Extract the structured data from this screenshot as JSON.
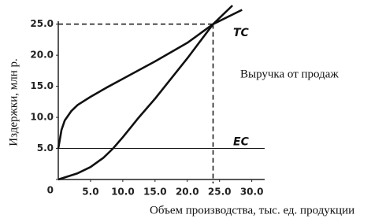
{
  "chart_data": {
    "type": "line",
    "x_label": "Объем производства, тыс. ед. продукции",
    "y_label": "Издержки, млн р.",
    "xlim": [
      0,
      32
    ],
    "ylim": [
      0,
      28
    ],
    "xticks": [
      {
        "value": 5,
        "label": "5.0"
      },
      {
        "value": 10,
        "label": "10.0"
      },
      {
        "value": 15,
        "label": "15.0"
      },
      {
        "value": 20,
        "label": "20.0"
      },
      {
        "value": 25,
        "label": "25.0"
      },
      {
        "value": 30,
        "label": "30.0"
      }
    ],
    "yticks": [
      0,
      {
        "value": 5,
        "label": "5.0"
      },
      {
        "value": 10,
        "label": "10.0"
      },
      {
        "value": 15,
        "label": "15.0"
      },
      {
        "value": 20,
        "label": "20.0"
      },
      {
        "value": 25,
        "label": "25.0"
      }
    ],
    "series": [
      {
        "name": "TC",
        "color": "#111111",
        "x": [
          0,
          0.5,
          1,
          2,
          3,
          5,
          7.5,
          10,
          15,
          20,
          24,
          28.5
        ],
        "values": [
          5,
          8,
          9.5,
          11,
          12,
          13.3,
          14.8,
          16.2,
          19,
          22,
          25,
          27.3
        ]
      },
      {
        "name": "Выручка от продаж",
        "color": "#111111",
        "x": [
          0,
          3,
          5,
          7,
          8.5,
          10,
          12.5,
          15,
          20,
          24,
          27
        ],
        "values": [
          0,
          1,
          2,
          3.5,
          5,
          6.8,
          10,
          13,
          19.5,
          25,
          28
        ]
      },
      {
        "name": "EC",
        "color": "#111111",
        "x": [
          0,
          32
        ],
        "values": [
          5,
          5
        ]
      }
    ],
    "break_even": {
      "x": 24,
      "y": 25
    }
  }
}
